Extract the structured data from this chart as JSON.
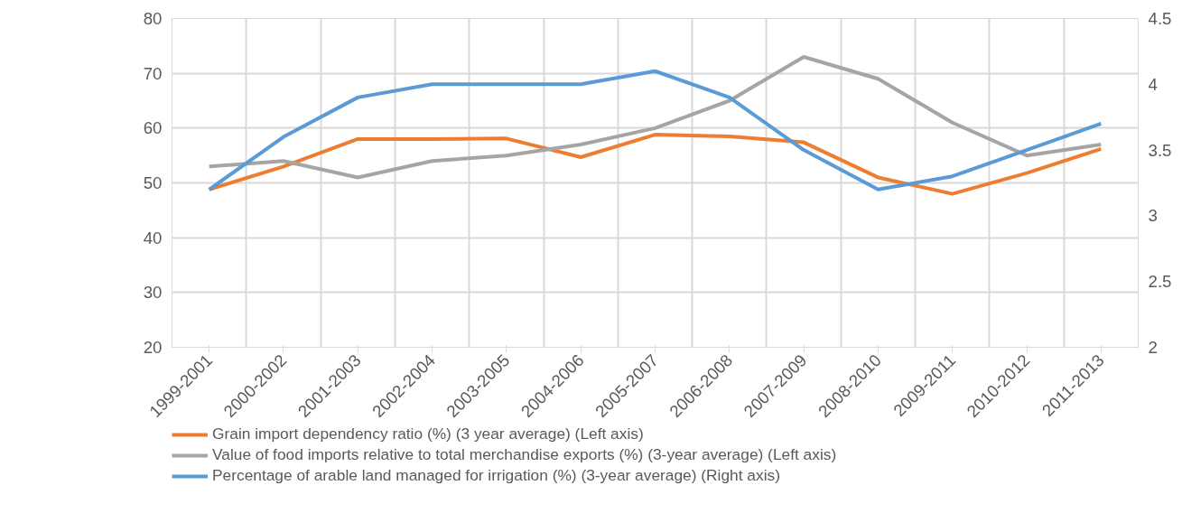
{
  "chart_data": {
    "type": "line",
    "categories": [
      "1999-2001",
      "2000-2002",
      "2001-2003",
      "2002-2004",
      "2003-2005",
      "2004-2006",
      "2005-2007",
      "2006-2008",
      "2007-2009",
      "2008-2010",
      "2009-2011",
      "2010-2012",
      "2011-2013"
    ],
    "series": [
      {
        "name": "Grain import dependency ratio (%) (3 year average) (Left axis)",
        "color": "#ed7d31",
        "values": [
          48.8,
          53,
          58,
          58,
          58.1,
          54.7,
          58.8,
          58.5,
          57.4,
          51,
          48,
          51.8,
          56.2
        ]
      },
      {
        "name": "Value of food imports relative to total merchandise exports (%) (3-year average) (Left axis)",
        "color": "#a5a5a5",
        "values": [
          53,
          54,
          51,
          54,
          55,
          57,
          60,
          65,
          73,
          69,
          61,
          55,
          57
        ]
      },
      {
        "name": "Percentage of arable land managed for irrigation (%) (3-year average) (Right axis)",
        "color": "#5b9bd5",
        "axis": "y2",
        "values": [
          3.2,
          3.6,
          3.9,
          4.0,
          4.0,
          4.0,
          4.1,
          3.9,
          3.5,
          3.2,
          3.3,
          3.5,
          3.7
        ]
      }
    ],
    "ylim": [
      20,
      80
    ],
    "yticks": [
      20,
      30,
      40,
      50,
      60,
      70,
      80
    ],
    "y2lim": [
      2,
      4.5
    ],
    "y2ticks": [
      2,
      {
        "value": 2.5,
        "label": "2.5"
      },
      3,
      {
        "value": 3.5,
        "label": "3.5"
      },
      4,
      {
        "value": 4.5,
        "label": "4.5"
      }
    ],
    "grid": true,
    "legend": "bottom",
    "marker": "none",
    "line_style": "solid"
  }
}
